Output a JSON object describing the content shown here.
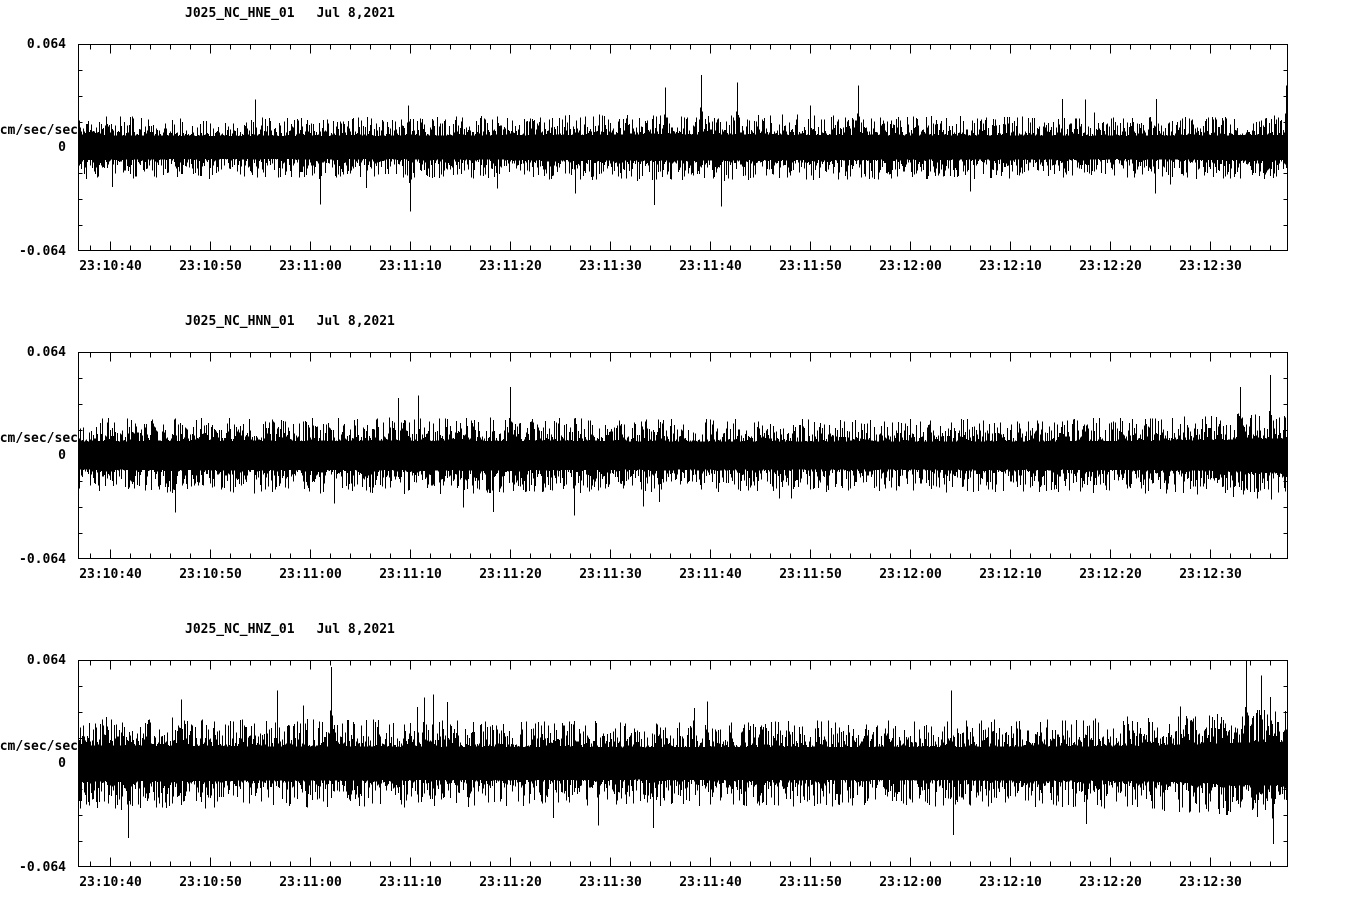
{
  "figure": {
    "background": "#ffffff",
    "axis_color": "#000000",
    "trace_color": "#000000",
    "station": "J025",
    "network": "NC",
    "date_label": "Jul 8,2021"
  },
  "chart_data": [
    {
      "type": "line",
      "kind": "seismogram",
      "title": "J025_NC_HNE_01",
      "date": "Jul 8,2021",
      "ylabel": "cm/sec/sec",
      "ylim": [
        -0.064,
        0.064
      ],
      "ytick_labels": [
        "0.064",
        "0",
        "-0.064"
      ],
      "x_tick_labels": [
        "23:10:40",
        "23:10:50",
        "23:11:00",
        "23:11:10",
        "23:11:20",
        "23:11:30",
        "23:11:40",
        "23:11:50",
        "23:12:00",
        "23:12:10",
        "23:12:20",
        "23:12:30"
      ],
      "x_major_interval_sec": 10,
      "x_minor_interval_sec": 2,
      "x_span_sec": 121,
      "x_first_tick_offset_sec": 3.2,
      "grid": false,
      "legend": false,
      "series_description": "continuous high-frequency seismic noise, typical amplitude about ±0.02 cm/sec/sec with isolated spikes to ±0.04",
      "waveform": {
        "seed": 11,
        "base_amp": 0.3,
        "spike_chance": 0.012,
        "spike_boost": 1.8,
        "envelope": [
          [
            0,
            1.05
          ],
          [
            0.12,
            0.96
          ],
          [
            0.3,
            1.0
          ],
          [
            0.5,
            1.1
          ],
          [
            0.65,
            1.04
          ],
          [
            0.85,
            0.98
          ],
          [
            1,
            1.06
          ]
        ],
        "events": [
          {
            "pos": 0.2,
            "amp": 0.55,
            "dir": -1
          },
          {
            "pos": 0.274,
            "amp": 0.62,
            "dir": -1
          },
          {
            "pos": 0.485,
            "amp": 0.58,
            "dir": 1
          },
          {
            "pos": 0.515,
            "amp": 0.7,
            "dir": 1
          },
          {
            "pos": 0.545,
            "amp": 0.63,
            "dir": 1
          },
          {
            "pos": 0.645,
            "amp": 0.6,
            "dir": 1
          },
          {
            "pos": 0.998,
            "amp": 0.6,
            "dir": 1
          }
        ]
      }
    },
    {
      "type": "line",
      "kind": "seismogram",
      "title": "J025_NC_HNN_01",
      "date": "Jul 8,2021",
      "ylabel": "cm/sec/sec",
      "ylim": [
        -0.064,
        0.064
      ],
      "ytick_labels": [
        "0.064",
        "0",
        "-0.064"
      ],
      "x_tick_labels": [
        "23:10:40",
        "23:10:50",
        "23:11:00",
        "23:11:10",
        "23:11:20",
        "23:11:30",
        "23:11:40",
        "23:11:50",
        "23:12:00",
        "23:12:10",
        "23:12:20",
        "23:12:30"
      ],
      "x_major_interval_sec": 10,
      "x_minor_interval_sec": 2,
      "x_span_sec": 121,
      "x_first_tick_offset_sec": 3.2,
      "grid": false,
      "legend": false,
      "series_description": "continuous high-frequency seismic noise, typical amplitude about ±0.025 cm/sec/sec, slightly stronger at the right end of the window",
      "waveform": {
        "seed": 22,
        "base_amp": 0.36,
        "spike_chance": 0.01,
        "spike_boost": 1.6,
        "envelope": [
          [
            0,
            1.0
          ],
          [
            0.3,
            1.04
          ],
          [
            0.55,
            0.98
          ],
          [
            0.8,
            1.0
          ],
          [
            0.93,
            1.06
          ],
          [
            1,
            1.22
          ]
        ],
        "events": [
          {
            "pos": 0.08,
            "amp": 0.55,
            "dir": -1
          },
          {
            "pos": 0.357,
            "amp": 0.66,
            "dir": 1
          },
          {
            "pos": 0.41,
            "amp": 0.58,
            "dir": -1
          },
          {
            "pos": 0.96,
            "amp": 0.66,
            "dir": 1
          },
          {
            "pos": 0.985,
            "amp": 0.78,
            "dir": 1
          }
        ]
      }
    },
    {
      "type": "line",
      "kind": "seismogram",
      "title": "J025_NC_HNZ_01",
      "date": "Jul 8,2021",
      "ylabel": "cm/sec/sec",
      "ylim": [
        -0.064,
        0.064
      ],
      "ytick_labels": [
        "0.064",
        "0",
        "-0.064"
      ],
      "x_tick_labels": [
        "23:10:40",
        "23:10:50",
        "23:11:00",
        "23:11:10",
        "23:11:20",
        "23:11:30",
        "23:11:40",
        "23:11:50",
        "23:12:00",
        "23:12:10",
        "23:12:20",
        "23:12:30"
      ],
      "x_major_interval_sec": 10,
      "x_minor_interval_sec": 2,
      "x_span_sec": 121,
      "x_first_tick_offset_sec": 3.2,
      "grid": false,
      "legend": false,
      "series_description": "continuous high-frequency seismic noise, typical amplitude about ±0.03 cm/sec/sec; tall spike near 23:11:03 and large spikes near 23:12:35 approaching ±0.064",
      "waveform": {
        "seed": 33,
        "base_amp": 0.42,
        "spike_chance": 0.016,
        "spike_boost": 1.7,
        "envelope": [
          [
            0,
            1.08
          ],
          [
            0.2,
            1.02
          ],
          [
            0.45,
            0.98
          ],
          [
            0.7,
            1.0
          ],
          [
            0.88,
            1.05
          ],
          [
            0.96,
            1.25
          ],
          [
            1,
            1.3
          ]
        ],
        "events": [
          {
            "pos": 0.041,
            "amp": 0.72,
            "dir": -1
          },
          {
            "pos": 0.085,
            "amp": 0.62,
            "dir": 1
          },
          {
            "pos": 0.209,
            "amp": 0.93,
            "dir": 1
          },
          {
            "pos": 0.43,
            "amp": 0.6,
            "dir": -1
          },
          {
            "pos": 0.52,
            "amp": 0.6,
            "dir": 1
          },
          {
            "pos": 0.965,
            "amp": 1.0,
            "dir": 1
          },
          {
            "pos": 0.978,
            "amp": 0.85,
            "dir": 1
          },
          {
            "pos": 0.988,
            "amp": 0.78,
            "dir": -1
          }
        ]
      }
    }
  ]
}
